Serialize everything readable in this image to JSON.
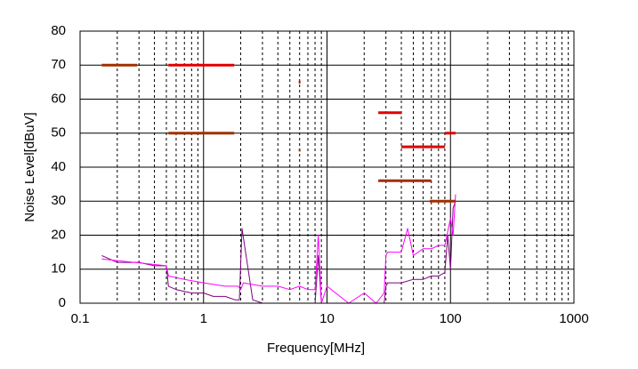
{
  "chart_data": {
    "type": "line",
    "x_label": "Frequency[MHz]",
    "y_label": "Noise Level[dBuV]",
    "xscale": "log",
    "xlim": [
      0.1,
      1000
    ],
    "xticks": [
      0.1,
      1,
      10,
      100,
      1000
    ],
    "xminor": [
      0.2,
      0.3,
      0.4,
      0.5,
      0.6,
      0.7,
      0.8,
      0.9,
      2,
      3,
      4,
      5,
      6,
      7,
      8,
      9,
      20,
      30,
      40,
      50,
      60,
      70,
      80,
      90,
      200,
      300,
      400,
      500,
      600,
      700,
      800,
      900
    ],
    "ylim": [
      0,
      80
    ],
    "yticks": [
      0,
      10,
      20,
      30,
      40,
      50,
      60,
      70,
      80
    ],
    "grid": true,
    "series": [
      {
        "color": "#800080",
        "width": 1,
        "x": [
          0.15,
          0.2,
          0.3,
          0.4,
          0.5,
          0.52,
          0.6,
          0.8,
          1,
          1.2,
          1.5,
          1.8,
          1.95,
          2.05,
          2.5,
          3,
          5,
          8,
          8.5,
          9,
          12,
          20,
          29,
          30,
          31,
          40,
          50,
          60,
          70,
          80,
          90,
          95,
          100,
          105,
          110
        ],
        "values": [
          14,
          12,
          12,
          11,
          11,
          5,
          4,
          3,
          3,
          2,
          2,
          1,
          1,
          22,
          1,
          0,
          0,
          0,
          14,
          0,
          0,
          0,
          0,
          5,
          6,
          6,
          7,
          7,
          8,
          8,
          9,
          20,
          10,
          28,
          30
        ]
      },
      {
        "color": "#ff00ff",
        "width": 1,
        "x": [
          0.15,
          0.5,
          0.52,
          0.7,
          1,
          1.5,
          1.9,
          2,
          2.1,
          3,
          4,
          5,
          6,
          7,
          8,
          8.5,
          9,
          10,
          15,
          20,
          25,
          29,
          30,
          31,
          40,
          45,
          50,
          60,
          70,
          80,
          90,
          100,
          105,
          110
        ],
        "values": [
          13,
          11,
          8,
          7,
          6,
          5,
          5,
          4,
          6,
          5,
          5,
          4,
          5,
          4,
          4,
          20,
          0,
          5,
          0,
          3,
          0,
          3,
          14,
          15,
          15,
          22,
          14,
          16,
          16,
          17,
          17,
          25,
          20,
          32
        ]
      },
      {
        "color": "#e00000",
        "width": 3,
        "x": [
          0.52,
          1.77,
          null,
          5.9,
          6.1,
          null,
          26,
          40,
          null,
          40,
          90,
          null,
          90,
          110
        ],
        "values": [
          70,
          70,
          null,
          65,
          65,
          null,
          56,
          56,
          null,
          46,
          46,
          null,
          50,
          50
        ]
      },
      {
        "color": "#a03000",
        "width": 3,
        "x": [
          0.15,
          0.29,
          null,
          0.52,
          1.77,
          null,
          5.9,
          6.1,
          null,
          26,
          70,
          null,
          68,
          110
        ],
        "values": [
          70,
          70,
          null,
          50,
          50,
          null,
          45,
          45,
          null,
          36,
          36,
          null,
          30,
          30
        ]
      }
    ]
  }
}
